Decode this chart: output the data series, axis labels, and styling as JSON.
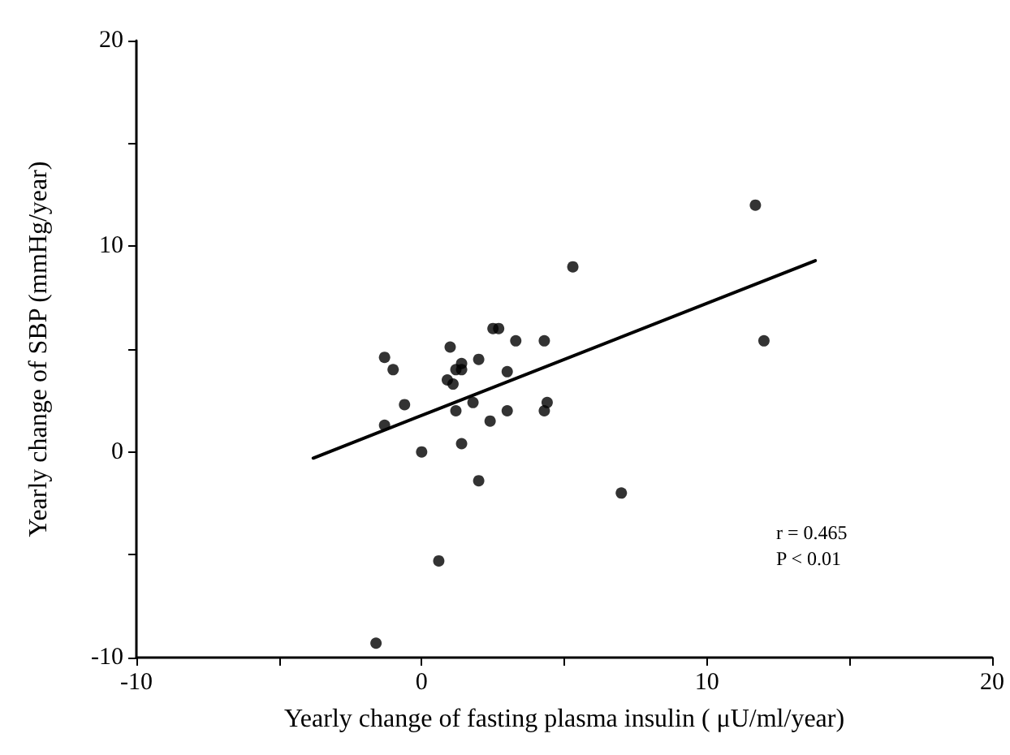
{
  "chart_data": {
    "type": "scatter",
    "xlabel": "Yearly change of fasting plasma insulin ( μU/ml/year)",
    "ylabel": "Yearly change of SBP (mmHg/year)",
    "xlim": [
      -10,
      20
    ],
    "xticks": [
      -10,
      {
        "value": -5,
        "label": null
      },
      0,
      {
        "value": 5,
        "label": null
      },
      10,
      {
        "value": 15,
        "label": null
      },
      20
    ],
    "ylim": [
      -10,
      20
    ],
    "yticks": [
      -10,
      {
        "value": -5,
        "label": null
      },
      0,
      {
        "value": 5,
        "label": null
      },
      10,
      {
        "value": 15,
        "label": null
      },
      20
    ],
    "grid": false,
    "series": [
      {
        "marker": "circle",
        "color": "#000000",
        "x": [
          -1.3,
          -1.0,
          -1.3,
          -0.6,
          0,
          1.0,
          0.9,
          1.1,
          1.2,
          1.4,
          1.4,
          1.2,
          1.4,
          1.8,
          2.0,
          2.0,
          0.6,
          -1.6,
          2.5,
          2.7,
          2.4,
          3.0,
          3.0,
          3.3,
          4.3,
          4.3,
          4.4,
          5.3,
          7.0,
          11.7,
          12.0
        ],
        "values": [
          4.6,
          4.0,
          1.3,
          2.3,
          0,
          5.1,
          3.5,
          3.3,
          4.0,
          4.3,
          4.0,
          2.0,
          0.4,
          2.4,
          4.5,
          -1.4,
          -5.3,
          -9.3,
          6.0,
          6.0,
          1.5,
          3.9,
          2.0,
          5.4,
          5.4,
          2.0,
          2.4,
          9.0,
          -2.0,
          12.0,
          5.4
        ]
      },
      {
        "type": "line",
        "marker": "none",
        "color": "#000000",
        "x": [
          -3.8,
          13.8
        ],
        "values": [
          -0.3,
          9.3
        ]
      }
    ],
    "annotations": [
      "r = 0.465",
      "P < 0.01"
    ]
  }
}
